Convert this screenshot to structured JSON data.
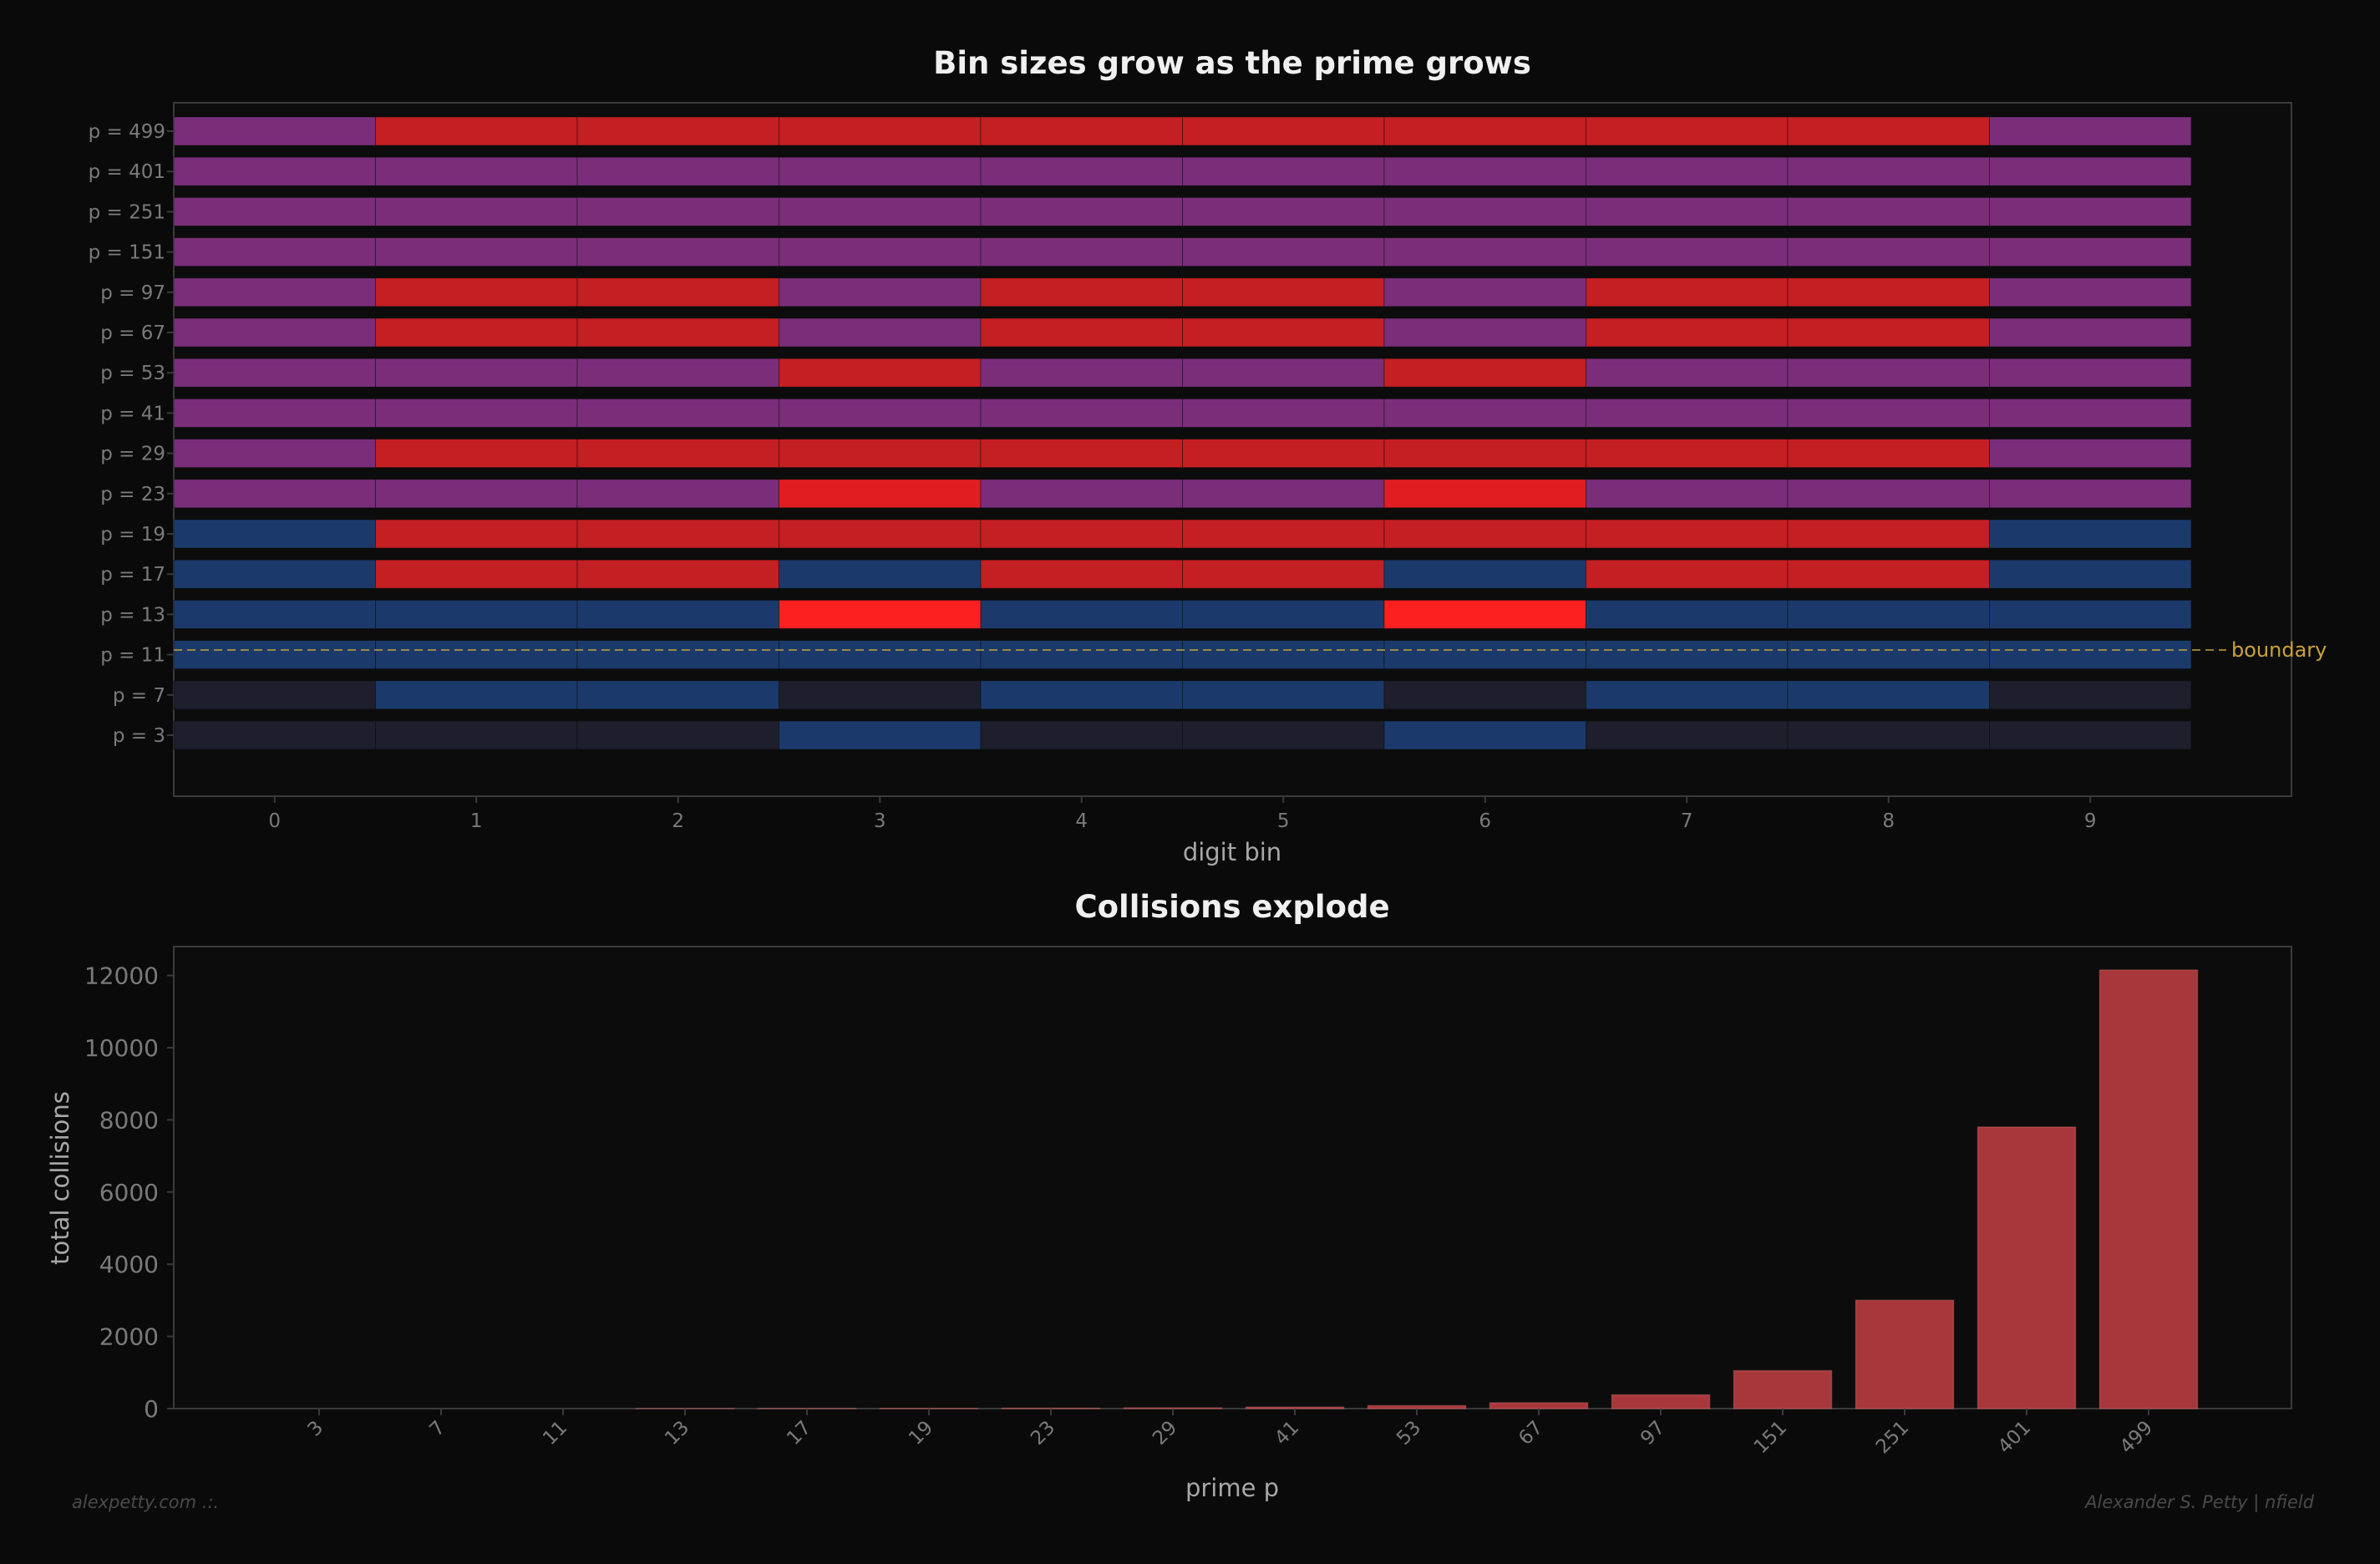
{
  "colors": {
    "background": "#0a0a0a",
    "axes_face": "#0c0c0c",
    "spine": "#3a3a3a",
    "tick_text": "#7a7a7a",
    "label_text": "#a8a8a8",
    "title_text": "#f0f0f0",
    "boundary": "#c9a23a",
    "bar_fill": "#a8373b",
    "bar_edge": "#d06868",
    "cell_levels": [
      "#1e1e2c",
      "#1b3a6b",
      "#7a2e7a",
      "#c41f23",
      "#e01e22",
      "#fc2020"
    ]
  },
  "chart_data": [
    {
      "type": "heatmap",
      "title": "Bin sizes grow as the prime grows",
      "xlabel": "digit bin",
      "ylabel": "",
      "x_ticks": [
        "0",
        "1",
        "2",
        "3",
        "4",
        "5",
        "6",
        "7",
        "8",
        "9"
      ],
      "rows": [
        {
          "label": "p = 3",
          "levels": [
            0,
            0,
            0,
            1,
            0,
            0,
            1,
            0,
            0,
            0
          ]
        },
        {
          "label": "p = 7",
          "levels": [
            0,
            1,
            1,
            0,
            1,
            1,
            0,
            1,
            1,
            0
          ]
        },
        {
          "label": "p = 11",
          "levels": [
            1,
            1,
            1,
            1,
            1,
            1,
            1,
            1,
            1,
            1
          ]
        },
        {
          "label": "p = 13",
          "levels": [
            1,
            1,
            1,
            5,
            1,
            1,
            5,
            1,
            1,
            1
          ]
        },
        {
          "label": "p = 17",
          "levels": [
            1,
            3,
            3,
            1,
            3,
            3,
            1,
            3,
            3,
            1
          ]
        },
        {
          "label": "p = 19",
          "levels": [
            1,
            3,
            3,
            3,
            3,
            3,
            3,
            3,
            3,
            1
          ]
        },
        {
          "label": "p = 23",
          "levels": [
            2,
            2,
            2,
            4,
            2,
            2,
            4,
            2,
            2,
            2
          ]
        },
        {
          "label": "p = 29",
          "levels": [
            2,
            3,
            3,
            3,
            3,
            3,
            3,
            3,
            3,
            2
          ]
        },
        {
          "label": "p = 41",
          "levels": [
            2,
            2,
            2,
            2,
            2,
            2,
            2,
            2,
            2,
            2
          ]
        },
        {
          "label": "p = 53",
          "levels": [
            2,
            2,
            2,
            3,
            2,
            2,
            3,
            2,
            2,
            2
          ]
        },
        {
          "label": "p = 67",
          "levels": [
            2,
            3,
            3,
            2,
            3,
            3,
            2,
            3,
            3,
            2
          ]
        },
        {
          "label": "p = 97",
          "levels": [
            2,
            3,
            3,
            2,
            3,
            3,
            2,
            3,
            3,
            2
          ]
        },
        {
          "label": "p = 151",
          "levels": [
            2,
            2,
            2,
            2,
            2,
            2,
            2,
            2,
            2,
            2
          ]
        },
        {
          "label": "p = 251",
          "levels": [
            2,
            2,
            2,
            2,
            2,
            2,
            2,
            2,
            2,
            2
          ]
        },
        {
          "label": "p = 401",
          "levels": [
            2,
            2,
            2,
            2,
            2,
            2,
            2,
            2,
            2,
            2
          ]
        },
        {
          "label": "p = 499",
          "levels": [
            2,
            3,
            3,
            3,
            3,
            3,
            3,
            3,
            3,
            2
          ]
        }
      ],
      "annotations": [
        {
          "type": "hline",
          "label": "boundary",
          "between_rows": [
            "p = 11",
            "p = 13"
          ],
          "style": "dashed"
        }
      ],
      "grid": false
    },
    {
      "type": "bar",
      "title": "Collisions explode",
      "xlabel": "prime p",
      "ylabel": "total collisions",
      "categories": [
        "3",
        "7",
        "11",
        "13",
        "17",
        "19",
        "23",
        "29",
        "41",
        "53",
        "67",
        "97",
        "151",
        "251",
        "401",
        "499"
      ],
      "values": [
        0,
        0,
        0,
        2,
        4,
        6,
        10,
        20,
        40,
        80,
        160,
        380,
        1050,
        3000,
        7800,
        12150
      ],
      "ylim": [
        0,
        12800
      ],
      "y_ticks": [
        "0",
        "2000",
        "4000",
        "6000",
        "8000",
        "10000",
        "12000"
      ],
      "grid": false
    }
  ],
  "footer": {
    "left": "alexpetty.com  .:.",
    "right": "Alexander S. Petty  |  nfield"
  }
}
